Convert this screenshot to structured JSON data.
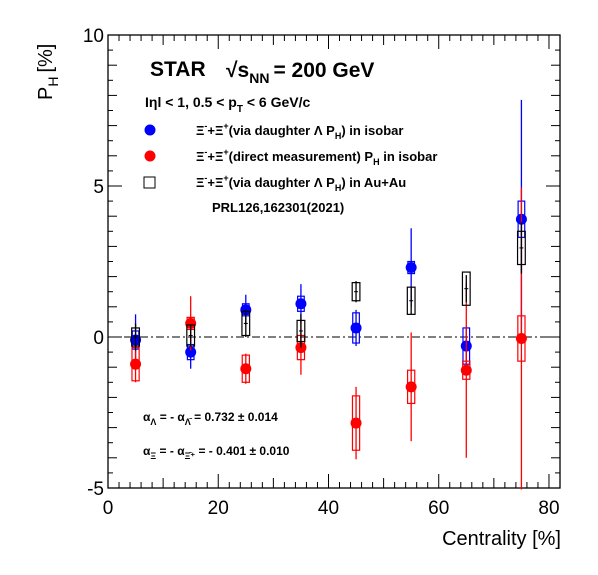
{
  "chart_data": {
    "type": "scatter",
    "xlabel": "Centrality [%]",
    "ylabel": "P",
    "ylabel_sub": "H",
    "ylabel_unit": "[%]",
    "xlim": [
      0,
      82
    ],
    "ylim": [
      -5,
      10
    ],
    "x_ticks": [
      0,
      20,
      40,
      60,
      80
    ],
    "y_ticks": [
      -5,
      0,
      5,
      10
    ],
    "grid": false,
    "legend_position": "top-left",
    "reference_line": 0,
    "header": {
      "experiment": "STAR",
      "energy_prefix": "√s",
      "energy_sub": "NN",
      "energy_value": "= 200 GeV",
      "cuts_1": "Iηl < 1, 0.5 < p",
      "cuts_sub": "T",
      "cuts_2": " < 6 GeV/c"
    },
    "series": [
      {
        "name": "Ξ⁻+Ξ⁺(via daughter Λ P_H) in isobar",
        "legend_parts": [
          "Ξ",
          "-",
          "+Ξ",
          "+",
          "(via daughter Λ P",
          "H",
          ") in isobar"
        ],
        "color": "#0000ff",
        "marker": "filled-circle",
        "x": [
          5,
          15,
          25,
          35,
          45,
          55,
          65,
          75
        ],
        "y": [
          -0.1,
          -0.5,
          0.9,
          1.1,
          0.3,
          2.3,
          -0.3,
          3.9
        ],
        "stat_err": [
          0.85,
          0.55,
          0.5,
          0.65,
          0.6,
          1.3,
          0.65,
          3.95
        ],
        "sys_err": [
          0.3,
          0.25,
          0.2,
          0.25,
          0.5,
          0.2,
          0.6,
          0.6
        ]
      },
      {
        "name": "Ξ⁻+Ξ⁺(direct measurement) P_H in isobar",
        "legend_parts": [
          "Ξ",
          "-",
          "+Ξ",
          "+",
          "(direct measurement) P",
          "H",
          " in isobar"
        ],
        "color": "#ff0000",
        "marker": "filled-circle",
        "x": [
          5,
          15,
          25,
          35,
          45,
          55,
          65,
          75
        ],
        "y": [
          -0.9,
          0.45,
          -1.05,
          -0.35,
          -2.85,
          -1.65,
          -1.1,
          -0.05
        ],
        "stat_err": [
          0.6,
          0.9,
          0.5,
          0.9,
          1.2,
          1.8,
          2.9,
          5.0
        ],
        "sys_err": [
          0.55,
          0.2,
          0.45,
          0.4,
          0.9,
          0.55,
          0.3,
          0.75
        ]
      },
      {
        "name": "Ξ⁻+Ξ⁺(via daughter Λ P_H) in Au+Au",
        "legend_parts": [
          "Ξ",
          "-",
          "+Ξ",
          "+",
          "(via daughter Λ P",
          "H",
          ") in Au+Au"
        ],
        "color": "#000000",
        "marker": "open-square",
        "x": [
          5,
          15,
          25,
          35,
          45,
          55,
          65,
          75
        ],
        "y": [
          0.0,
          0.05,
          0.45,
          0.2,
          1.5,
          1.2,
          1.6,
          2.95
        ],
        "stat_err": [
          0.45,
          0.35,
          0.45,
          0.55,
          0.35,
          0.45,
          0.45,
          0.85
        ],
        "sys_err": [
          0.3,
          0.35,
          0.4,
          0.35,
          0.3,
          0.45,
          0.55,
          0.55
        ]
      }
    ],
    "reference": "PRL126,162301(2021)",
    "annotations": [
      {
        "parts": [
          "α",
          "Λ",
          " = - α",
          "Λ̄",
          " = 0.732 ± 0.014"
        ]
      },
      {
        "parts": [
          "α",
          "Ξ",
          " = - α",
          "Ξ̄⁺",
          " = - 0.401 ± 0.010"
        ]
      }
    ]
  }
}
